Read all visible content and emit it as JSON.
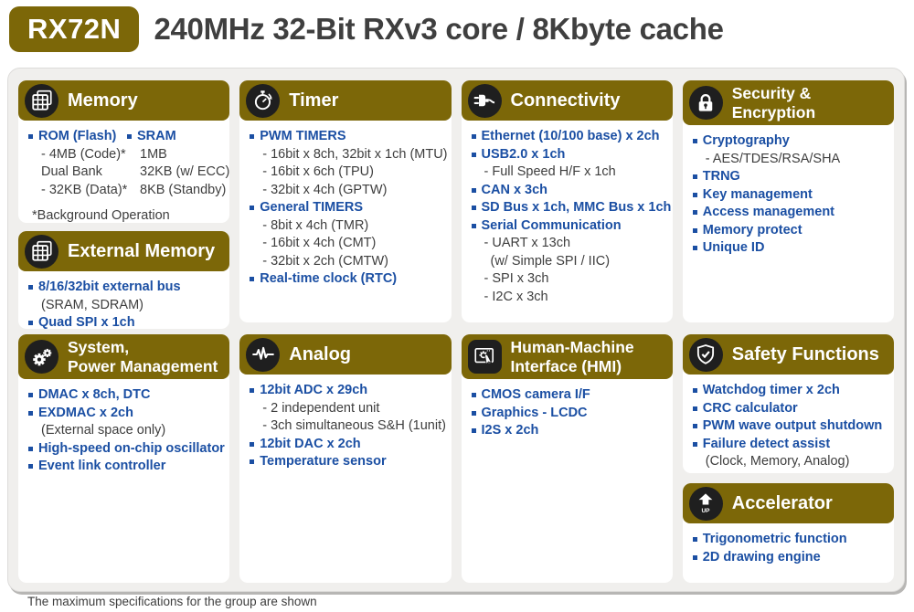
{
  "header": {
    "badge": "RX72N",
    "title": "240MHz 32-Bit RXv3 core / 8Kbyte cache"
  },
  "footer": "The maximum specifications for the group are shown",
  "colors": {
    "olive": "#7c6708",
    "blue": "#1b4fa3",
    "text_gray": "#3e3e3e",
    "panel_bg": "#f0efed",
    "icon_circle_bg": "#1f1f1f",
    "card_bg": "#ffffff"
  },
  "cards": {
    "memory": {
      "title": "Memory",
      "icon": "memory-icon",
      "columns": [
        [
          {
            "t": "ROM (Flash)",
            "s": "feature"
          },
          {
            "t": "- 4MB (Code)*",
            "s": "sub"
          },
          {
            "t": "Dual Bank",
            "s": "sub"
          },
          {
            "t": "- 32KB (Data)*",
            "s": "sub"
          }
        ],
        [
          {
            "t": "SRAM",
            "s": "feature"
          },
          {
            "t": "1MB",
            "s": "sub"
          },
          {
            "t": "32KB (w/ ECC)",
            "s": "sub"
          },
          {
            "t": "8KB (Standby)",
            "s": "sub"
          }
        ]
      ],
      "items": [
        {
          "t": "*Background Operation",
          "s": "note"
        }
      ]
    },
    "external-memory": {
      "title": "External Memory",
      "icon": "memory-icon",
      "items": [
        {
          "t": "8/16/32bit external bus",
          "s": "feature"
        },
        {
          "t": "(SRAM, SDRAM)",
          "s": "sub"
        },
        {
          "t": "Quad SPI x 1ch",
          "s": "feature"
        }
      ]
    },
    "system": {
      "title": "System,\nPower Management",
      "icon": "gears-icon",
      "items": [
        {
          "t": "DMAC x 8ch, DTC",
          "s": "feature"
        },
        {
          "t": "EXDMAC x 2ch",
          "s": "feature"
        },
        {
          "t": "(External space only)",
          "s": "sub"
        },
        {
          "t": "High-speed on-chip oscillator",
          "s": "feature"
        },
        {
          "t": "Event link controller",
          "s": "feature"
        }
      ]
    },
    "timer": {
      "title": "Timer",
      "icon": "stopwatch-icon",
      "items": [
        {
          "t": "PWM TIMERS",
          "s": "feature"
        },
        {
          "t": "- 16bit x 8ch, 32bit x 1ch (MTU)",
          "s": "sub"
        },
        {
          "t": "- 16bit x 6ch (TPU)",
          "s": "sub"
        },
        {
          "t": "- 32bit x 4ch (GPTW)",
          "s": "sub"
        },
        {
          "t": "General TIMERS",
          "s": "feature"
        },
        {
          "t": "- 8bit x 4ch (TMR)",
          "s": "sub"
        },
        {
          "t": "- 16bit x 4ch (CMT)",
          "s": "sub"
        },
        {
          "t": "- 32bit x 2ch (CMTW)",
          "s": "sub"
        },
        {
          "t": "Real-time clock (RTC)",
          "s": "feature"
        }
      ]
    },
    "analog": {
      "title": "Analog",
      "icon": "waveform-icon",
      "items": [
        {
          "t": "12bit  ADC x 29ch",
          "s": "feature"
        },
        {
          "t": "- 2 independent unit",
          "s": "sub"
        },
        {
          "t": "- 3ch simultaneous S&H (1unit)",
          "s": "sub"
        },
        {
          "t": "12bit DAC x 2ch",
          "s": "feature"
        },
        {
          "t": "Temperature sensor",
          "s": "feature"
        }
      ]
    },
    "connectivity": {
      "title": "Connectivity",
      "icon": "plug-icon",
      "items": [
        {
          "t": "Ethernet (10/100 base) x 2ch",
          "s": "feature"
        },
        {
          "t": "USB2.0 x 1ch",
          "s": "feature"
        },
        {
          "t": "- Full Speed H/F x 1ch",
          "s": "sub"
        },
        {
          "t": "CAN x 3ch",
          "s": "feature"
        },
        {
          "t": "SD Bus x 1ch, MMC Bus x 1ch",
          "s": "feature"
        },
        {
          "t": "Serial Communication",
          "s": "feature"
        },
        {
          "t": "- UART x 13ch",
          "s": "sub"
        },
        {
          "t": "(w/ Simple SPI / IIC)",
          "s": "sub2"
        },
        {
          "t": "- SPI x 3ch",
          "s": "sub"
        },
        {
          "t": "- I2C x 3ch",
          "s": "sub"
        }
      ]
    },
    "hmi": {
      "title": "Human-Machine\nInterface (HMI)",
      "icon": "touchscreen-icon",
      "items": [
        {
          "t": "CMOS camera I/F",
          "s": "feature"
        },
        {
          "t": "Graphics - LCDC",
          "s": "feature"
        },
        {
          "t": "I2S x 2ch",
          "s": "feature"
        }
      ]
    },
    "security": {
      "title": "Security &\nEncryption",
      "icon": "lock-icon",
      "items": [
        {
          "t": "Cryptography",
          "s": "feature"
        },
        {
          "t": "- AES/TDES/RSA/SHA",
          "s": "sub"
        },
        {
          "t": "TRNG",
          "s": "feature"
        },
        {
          "t": "Key management",
          "s": "feature"
        },
        {
          "t": "Access management",
          "s": "feature"
        },
        {
          "t": "Memory protect",
          "s": "feature"
        },
        {
          "t": "Unique ID",
          "s": "feature"
        }
      ]
    },
    "safety": {
      "title": "Safety Functions",
      "icon": "shield-check-icon",
      "items": [
        {
          "t": "Watchdog timer x 2ch",
          "s": "feature"
        },
        {
          "t": "CRC calculator",
          "s": "feature"
        },
        {
          "t": "PWM wave output shutdown",
          "s": "feature"
        },
        {
          "t": "Failure detect assist",
          "s": "feature"
        },
        {
          "t": "(Clock, Memory, Analog)",
          "s": "sub"
        }
      ]
    },
    "accelerator": {
      "title": "Accelerator",
      "icon": "up-arrow-icon",
      "items": [
        {
          "t": "Trigonometric function",
          "s": "feature"
        },
        {
          "t": "2D drawing engine",
          "s": "feature"
        }
      ]
    }
  }
}
